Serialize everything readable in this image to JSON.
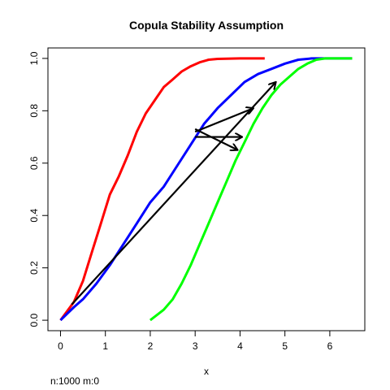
{
  "chart_data": {
    "type": "line",
    "title": "Copula Stability Assumption",
    "xlabel": "x",
    "ylabel": "",
    "xlim": [
      -0.28,
      6.78
    ],
    "ylim": [
      -0.04,
      1.04
    ],
    "xticks": [
      0,
      1,
      2,
      3,
      4,
      5,
      6
    ],
    "xtick_labels": [
      "0",
      "1",
      "2",
      "3",
      "4",
      "5",
      "6"
    ],
    "yticks": [
      0.0,
      0.2,
      0.4,
      0.6,
      0.8,
      1.0
    ],
    "ytick_labels": [
      "0.0",
      "0.2",
      "0.4",
      "0.6",
      "0.8",
      "1.0"
    ],
    "grid": false,
    "series": [
      {
        "name": "red",
        "color": "#ff0000",
        "x": [
          0.0,
          0.3,
          0.5,
          0.7,
          0.9,
          1.1,
          1.3,
          1.5,
          1.7,
          1.9,
          2.1,
          2.3,
          2.5,
          2.7,
          2.9,
          3.1,
          3.3,
          3.5,
          3.7,
          4.0,
          4.55
        ],
        "y": [
          0.0,
          0.07,
          0.15,
          0.26,
          0.37,
          0.48,
          0.55,
          0.63,
          0.72,
          0.79,
          0.84,
          0.89,
          0.92,
          0.95,
          0.97,
          0.985,
          0.995,
          0.998,
          0.999,
          1.0,
          1.0
        ]
      },
      {
        "name": "blue",
        "color": "#0000ff",
        "x": [
          0.0,
          0.3,
          0.5,
          0.8,
          1.1,
          1.4,
          1.7,
          2.0,
          2.3,
          2.6,
          2.9,
          3.2,
          3.5,
          3.8,
          4.1,
          4.4,
          4.7,
          5.0,
          5.3,
          5.6,
          6.1,
          6.5
        ],
        "y": [
          0.0,
          0.05,
          0.08,
          0.14,
          0.21,
          0.29,
          0.37,
          0.45,
          0.51,
          0.59,
          0.67,
          0.75,
          0.81,
          0.86,
          0.91,
          0.94,
          0.96,
          0.98,
          0.995,
          1.0,
          1.0,
          1.0
        ]
      },
      {
        "name": "green",
        "color": "#00ff00",
        "x": [
          2.0,
          2.3,
          2.5,
          2.7,
          2.9,
          3.1,
          3.3,
          3.5,
          3.7,
          3.9,
          4.1,
          4.3,
          4.5,
          4.7,
          4.9,
          5.1,
          5.3,
          5.5,
          5.7,
          5.9,
          6.1,
          6.5
        ],
        "y": [
          0.0,
          0.04,
          0.08,
          0.14,
          0.21,
          0.29,
          0.37,
          0.45,
          0.53,
          0.61,
          0.68,
          0.75,
          0.81,
          0.86,
          0.9,
          0.93,
          0.96,
          0.98,
          0.995,
          1.0,
          1.0,
          1.0
        ]
      }
    ],
    "arrows": [
      {
        "x0": 0.25,
        "y0": 0.06,
        "x1": 4.8,
        "y1": 0.91
      },
      {
        "x0": 3.0,
        "y0": 0.72,
        "x1": 4.3,
        "y1": 0.81
      },
      {
        "x0": 3.0,
        "y0": 0.73,
        "x1": 3.95,
        "y1": 0.65
      },
      {
        "x0": 3.0,
        "y0": 0.7,
        "x1": 4.05,
        "y1": 0.7
      }
    ],
    "arrow_color": "#000000"
  },
  "footer": {
    "note": "n:1000 m:0"
  }
}
